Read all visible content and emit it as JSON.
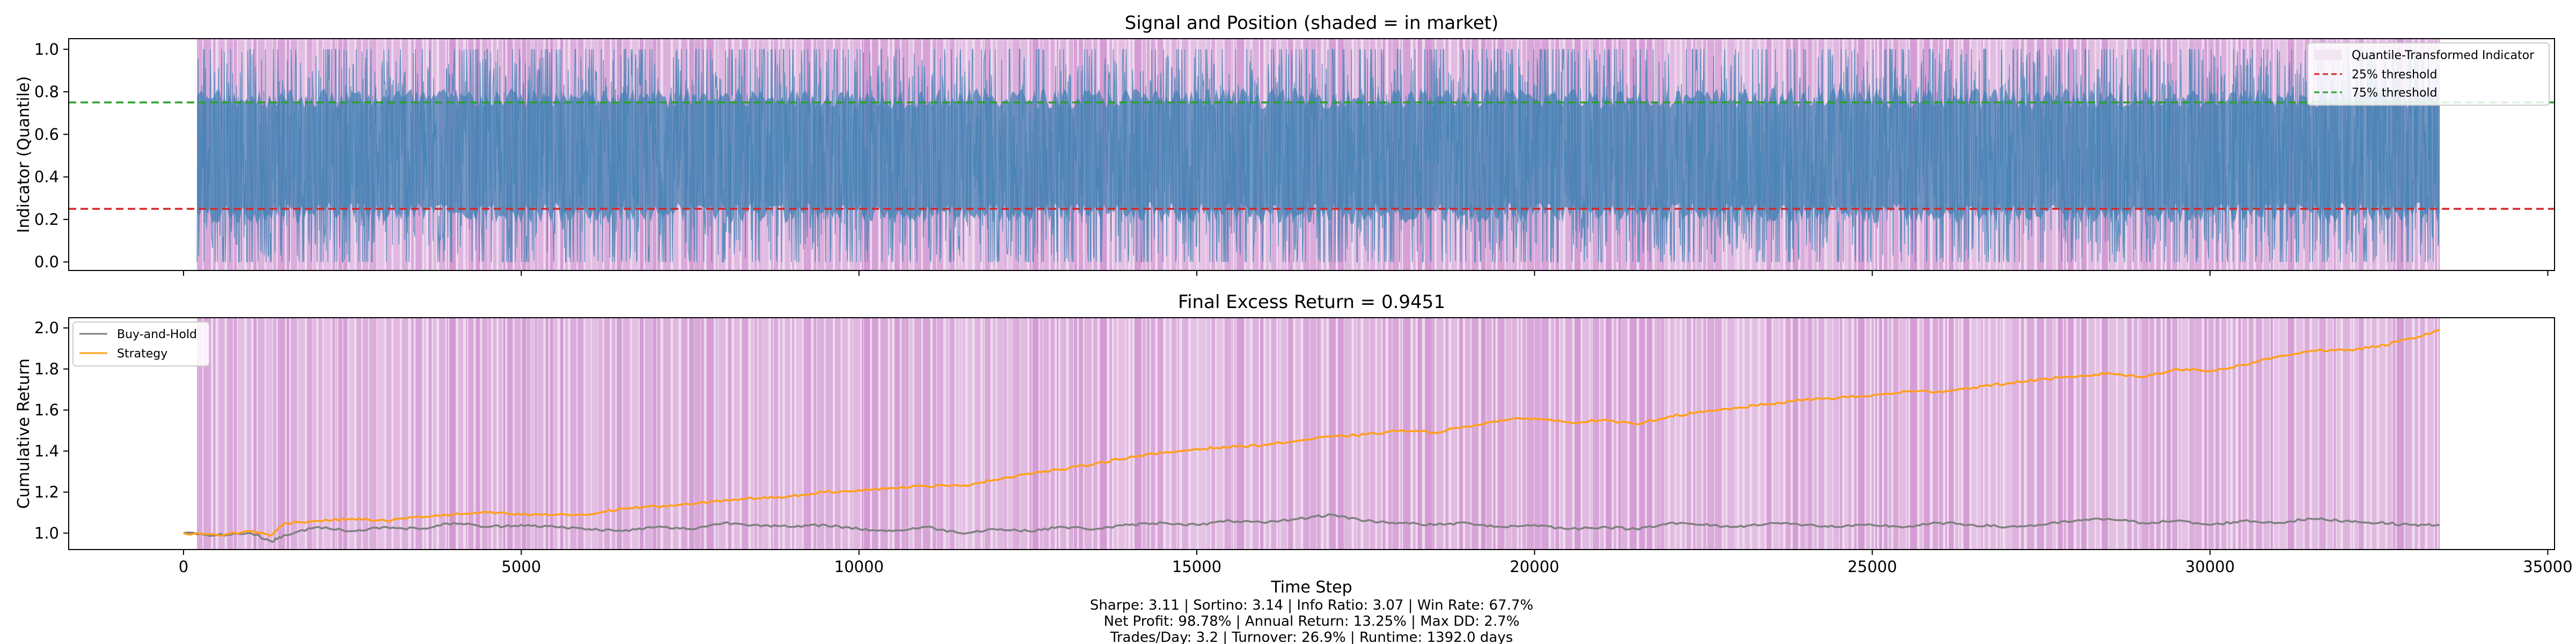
{
  "chart_data": [
    {
      "type": "line",
      "title": "Signal and Position (shaded = in market)",
      "xlabel": "",
      "ylabel": "Indicator (Quantile)",
      "xlim": [
        -1700,
        35100
      ],
      "ylim": [
        -0.04,
        1.05
      ],
      "x_range": [
        200,
        33400
      ],
      "yticks": [
        0.0,
        0.2,
        0.4,
        0.6,
        0.8,
        1.0
      ],
      "ytick_labels": [
        "0.0",
        "0.2",
        "0.4",
        "0.6",
        "0.8",
        "1.0"
      ],
      "series": [
        {
          "name": "Quantile-Transformed Indicator",
          "color": "#4682b4",
          "description_values": {
            "min": 0.0,
            "max": 1.0,
            "typical_low": 0.12,
            "typical_high": 0.9
          }
        }
      ],
      "thresholds": [
        {
          "name": "25% threshold",
          "value": 0.25,
          "color": "#d62728",
          "style": "dashed"
        },
        {
          "name": "75% threshold",
          "value": 0.75,
          "color": "#2ca02c",
          "style": "dashed"
        }
      ],
      "shading": {
        "color": "#c77dc7",
        "meaning": "in market"
      },
      "legend": {
        "placement": "top-right",
        "entries": [
          "Quantile-Transformed Indicator",
          "25% threshold",
          "75% threshold"
        ]
      }
    },
    {
      "type": "line",
      "title": "Final Excess Return = 0.9451",
      "xlabel": "Time Step",
      "ylabel": "Cumulative Return",
      "xlim": [
        -1700,
        35100
      ],
      "ylim": [
        0.92,
        2.05
      ],
      "xticks": [
        0,
        5000,
        10000,
        15000,
        20000,
        25000,
        30000,
        35000
      ],
      "xtick_labels": [
        "0",
        "5000",
        "10000",
        "15000",
        "20000",
        "25000",
        "30000",
        "35000"
      ],
      "yticks": [
        1.0,
        1.2,
        1.4,
        1.6,
        1.8,
        2.0
      ],
      "ytick_labels": [
        "1.0",
        "1.2",
        "1.4",
        "1.6",
        "1.8",
        "2.0"
      ],
      "series": [
        {
          "name": "Buy-and-Hold",
          "color": "#808080",
          "x": [
            0,
            500,
            1000,
            1300,
            1500,
            2000,
            2500,
            3000,
            3500,
            4000,
            4500,
            5000,
            5500,
            6000,
            6500,
            7000,
            7500,
            8000,
            8500,
            9000,
            9500,
            10000,
            10500,
            11000,
            11500,
            12000,
            12500,
            13000,
            13500,
            14000,
            14500,
            15000,
            15500,
            16000,
            16500,
            17000,
            17500,
            18000,
            18500,
            19000,
            19500,
            20000,
            20500,
            21000,
            21500,
            22000,
            22500,
            23000,
            23500,
            24000,
            24500,
            25000,
            25500,
            26000,
            26500,
            27000,
            27500,
            28000,
            28500,
            29000,
            29500,
            30000,
            30500,
            31000,
            31500,
            32000,
            32500,
            33000,
            33400
          ],
          "values": [
            1.0,
            0.99,
            1.0,
            0.96,
            0.99,
            1.03,
            1.01,
            1.03,
            1.02,
            1.05,
            1.03,
            1.04,
            1.03,
            1.02,
            1.01,
            1.03,
            1.02,
            1.05,
            1.04,
            1.03,
            1.04,
            1.02,
            1.01,
            1.03,
            1.0,
            1.02,
            1.01,
            1.03,
            1.02,
            1.04,
            1.05,
            1.04,
            1.06,
            1.05,
            1.07,
            1.09,
            1.06,
            1.05,
            1.04,
            1.05,
            1.03,
            1.04,
            1.02,
            1.03,
            1.02,
            1.05,
            1.04,
            1.03,
            1.05,
            1.04,
            1.03,
            1.04,
            1.03,
            1.05,
            1.04,
            1.03,
            1.04,
            1.06,
            1.07,
            1.05,
            1.06,
            1.04,
            1.06,
            1.05,
            1.07,
            1.06,
            1.05,
            1.04,
            1.04
          ]
        },
        {
          "name": "Strategy",
          "color": "#ff9f1a",
          "x": [
            0,
            500,
            1000,
            1300,
            1500,
            2000,
            2500,
            3000,
            3500,
            4000,
            4500,
            5000,
            5500,
            6000,
            6500,
            7000,
            7500,
            8000,
            8500,
            9000,
            9500,
            10000,
            10500,
            11000,
            11500,
            12000,
            12500,
            13000,
            13500,
            14000,
            14500,
            15000,
            15500,
            16000,
            16500,
            17000,
            17500,
            18000,
            18500,
            19000,
            19500,
            20000,
            20500,
            21000,
            21500,
            22000,
            22500,
            23000,
            23500,
            24000,
            24500,
            25000,
            25500,
            26000,
            26500,
            27000,
            27500,
            28000,
            28500,
            29000,
            29500,
            30000,
            30500,
            31000,
            31500,
            32000,
            32500,
            33000,
            33400
          ],
          "values": [
            1.0,
            0.99,
            1.01,
            0.99,
            1.05,
            1.06,
            1.07,
            1.06,
            1.08,
            1.09,
            1.1,
            1.09,
            1.09,
            1.09,
            1.12,
            1.13,
            1.14,
            1.16,
            1.17,
            1.18,
            1.2,
            1.21,
            1.22,
            1.23,
            1.23,
            1.26,
            1.29,
            1.31,
            1.34,
            1.37,
            1.39,
            1.41,
            1.42,
            1.43,
            1.45,
            1.47,
            1.48,
            1.5,
            1.49,
            1.52,
            1.55,
            1.56,
            1.54,
            1.55,
            1.53,
            1.57,
            1.59,
            1.61,
            1.63,
            1.65,
            1.66,
            1.67,
            1.69,
            1.69,
            1.71,
            1.73,
            1.75,
            1.76,
            1.78,
            1.76,
            1.8,
            1.79,
            1.82,
            1.86,
            1.89,
            1.89,
            1.91,
            1.95,
            1.99
          ]
        }
      ],
      "shading": {
        "color": "#c77dc7",
        "meaning": "in market"
      },
      "legend": {
        "placement": "top-left",
        "entries": [
          "Buy-and-Hold",
          "Strategy"
        ]
      }
    }
  ],
  "stats": {
    "line1": "Sharpe: 3.11 | Sortino: 3.14 | Info Ratio: 3.07 | Win Rate: 67.7%",
    "line2": "Net Profit: 98.78% | Annual Return: 13.25% | Max DD: 2.7%",
    "line3": "Trades/Day: 3.2 | Turnover: 26.9% | Runtime: 1392.0 days"
  }
}
